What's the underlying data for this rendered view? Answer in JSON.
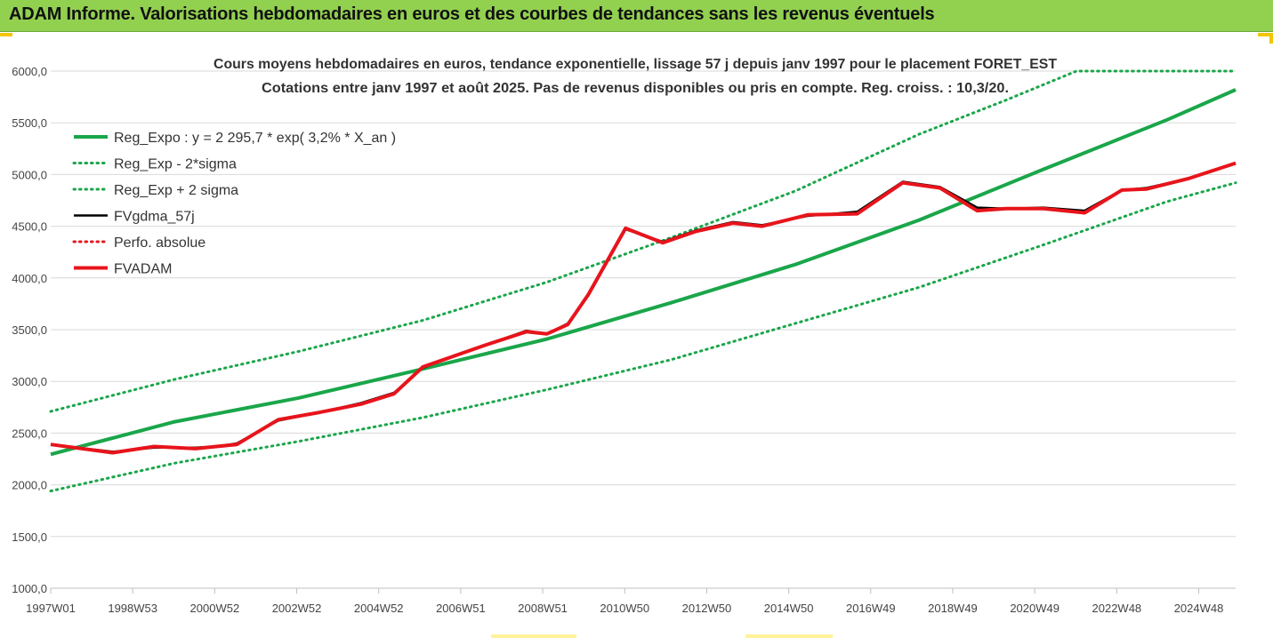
{
  "header": {
    "title": "ADAM Informe. Valorisations hebdomadaires en euros et des courbes de tendances sans les revenus éventuels"
  },
  "colors": {
    "banner": "#92d050",
    "trend": "#1aa64a",
    "fvadam": "#e8141b",
    "fvgdma": "#000000",
    "perfo": "#e8141b",
    "accent": "#f2c500"
  },
  "chart_data": {
    "type": "line",
    "title": "Cours moyens hebdomadaires en euros, tendance exponentielle, lissage 57 j depuis janv 1997 pour le placement FORET_EST",
    "subtitle": "Cotations entre janv 1997 et août 2025. Pas de revenus disponibles ou pris en compte. Reg. croiss. : 10,3/20.",
    "x_ticks": [
      "1997W01",
      "1998W53",
      "2000W52",
      "2002W52",
      "2004W52",
      "2006W51",
      "2008W51",
      "2010W50",
      "2012W50",
      "2014W50",
      "2016W49",
      "2018W49",
      "2020W49",
      "2022W48",
      "2024W48"
    ],
    "y_ticks": [
      "1000,0",
      "1500,0",
      "2000,0",
      "2500,0",
      "3000,0",
      "3500,0",
      "4000,0",
      "4500,0",
      "5000,0",
      "5500,0",
      "6000,0"
    ],
    "xlim": [
      1997.0,
      2025.65
    ],
    "ylim": [
      1000,
      6000
    ],
    "grid": "horizontal",
    "legend_position": "top-left",
    "series": [
      {
        "name": "Reg_Expo : y = 2 295,7 * exp( 3,2% *  X_an )",
        "style": "solid-thick",
        "color": "#1aa64a",
        "x": [
          1997.0,
          2000.0,
          2003.0,
          2006.0,
          2009.0,
          2012.0,
          2015.0,
          2018.0,
          2021.0,
          2024.0,
          2025.65
        ],
        "y": [
          2295,
          2610,
          2840,
          3120,
          3410,
          3760,
          4130,
          4560,
          5050,
          5530,
          5820
        ]
      },
      {
        "name": "Reg_Exp - 2*sigma",
        "style": "dotted",
        "color": "#1aa64a",
        "x": [
          1997.0,
          2000.0,
          2003.0,
          2006.0,
          2009.0,
          2012.0,
          2015.0,
          2018.0,
          2021.0,
          2024.0,
          2025.65
        ],
        "y": [
          1940,
          2210,
          2420,
          2650,
          2920,
          3210,
          3560,
          3910,
          4320,
          4740,
          4920
        ]
      },
      {
        "name": "Reg_Exp + 2 sigma",
        "style": "dotted",
        "color": "#1aa64a",
        "x": [
          1997.0,
          2000.0,
          2003.0,
          2006.0,
          2009.0,
          2012.0,
          2015.0,
          2018.0,
          2020.1,
          2021.8,
          2025.65
        ],
        "y": [
          2710,
          3020,
          3290,
          3590,
          3960,
          4390,
          4840,
          5390,
          5720,
          6000,
          6000
        ]
      },
      {
        "name": "FVgdma_57j",
        "style": "solid-thin",
        "color": "#000000",
        "x": [
          1997.0,
          1998.5,
          1999.5,
          2000.5,
          2001.0,
          2001.5,
          2002.5,
          2003.5,
          2004.5,
          2005.3,
          2006.0,
          2006.5,
          2007.5,
          2008.5,
          2009.0,
          2009.5,
          2010.0,
          2010.9,
          2011.8,
          2012.6,
          2013.5,
          2014.2,
          2015.3,
          2016.5,
          2017.6,
          2018.5,
          2019.4,
          2020.1,
          2021.0,
          2022.0,
          2022.9,
          2023.5,
          2024.5,
          2025.65
        ],
        "y": [
          2390,
          2320,
          2360,
          2360,
          2370,
          2400,
          2620,
          2700,
          2790,
          2890,
          3130,
          3210,
          3350,
          3490,
          3460,
          3560,
          3830,
          4470,
          4350,
          4460,
          4540,
          4510,
          4600,
          4640,
          4930,
          4880,
          4680,
          4670,
          4680,
          4650,
          4850,
          4870,
          4960,
          5110
        ]
      },
      {
        "name": "Perfo. absolue",
        "style": "dotted",
        "color": "#e8141b",
        "x": [],
        "y": []
      },
      {
        "name": "FVADAM",
        "style": "solid-thick",
        "color": "#e8141b",
        "x": [
          1997.0,
          1998.5,
          1999.5,
          2000.5,
          2001.0,
          2001.5,
          2002.5,
          2003.5,
          2004.5,
          2005.3,
          2006.0,
          2006.5,
          2007.5,
          2008.5,
          2009.0,
          2009.5,
          2010.0,
          2010.9,
          2011.8,
          2012.6,
          2013.5,
          2014.2,
          2015.3,
          2016.5,
          2017.6,
          2018.5,
          2019.4,
          2020.1,
          2021.0,
          2022.0,
          2022.9,
          2023.5,
          2024.5,
          2025.65
        ],
        "y": [
          2390,
          2310,
          2370,
          2350,
          2370,
          2390,
          2630,
          2700,
          2780,
          2880,
          3140,
          3210,
          3350,
          3480,
          3460,
          3550,
          3840,
          4480,
          4340,
          4450,
          4530,
          4500,
          4610,
          4620,
          4920,
          4870,
          4650,
          4670,
          4670,
          4630,
          4850,
          4860,
          4960,
          5110
        ]
      }
    ]
  }
}
